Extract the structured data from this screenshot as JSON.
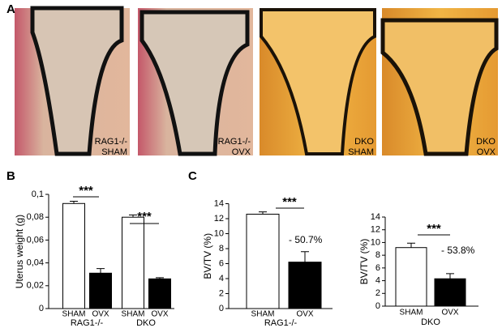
{
  "panel_labels": [
    "A",
    "B",
    "C"
  ],
  "images": [
    {
      "line1": "RAG1-/-",
      "line2": "SHAM"
    },
    {
      "line1": "RAG1-/-",
      "line2": "OVX"
    },
    {
      "line1": "DKO",
      "line2": "SHAM"
    },
    {
      "line1": "DKO",
      "line2": "OVX"
    }
  ],
  "chart_data": [
    {
      "type": "bar",
      "ylabel": "Uterus weight (g)",
      "categories": [
        "SHAM",
        "OVX",
        "SHAM",
        "OVX"
      ],
      "values": [
        0.092,
        0.031,
        0.08,
        0.026
      ],
      "errors": [
        0.002,
        0.004,
        0.002,
        0.001
      ],
      "bar_colors": [
        "#ffffff",
        "#000000",
        "#ffffff",
        "#000000"
      ],
      "group_labels": [
        "RAG1-/-",
        "DKO"
      ],
      "annotations": [
        "***",
        "***"
      ],
      "ylim": [
        0,
        0.1
      ],
      "yticks": [
        0,
        {
          "value": 0.02,
          "label": "0,02"
        },
        {
          "value": 0.04,
          "label": "0,04"
        },
        {
          "value": 0.06,
          "label": "0,06"
        },
        {
          "value": 0.08,
          "label": "0,08"
        },
        {
          "value": 0.1,
          "label": "0,1"
        }
      ]
    },
    {
      "type": "bar",
      "ylabel": "BV/TV (%)",
      "categories": [
        "SHAM",
        "OVX"
      ],
      "values": [
        12.6,
        6.2
      ],
      "errors": [
        0.3,
        1.4
      ],
      "bar_colors": [
        "#ffffff",
        "#000000"
      ],
      "group_labels": [
        "RAG1-/-"
      ],
      "annotations": [
        "***",
        "- 50.7%"
      ],
      "ylim": [
        0,
        14
      ],
      "yticks": [
        0,
        2,
        4,
        6,
        8,
        10,
        12,
        14
      ]
    },
    {
      "type": "bar",
      "ylabel": "BV/TV (%)",
      "categories": [
        "SHAM",
        "OVX"
      ],
      "values": [
        9.2,
        4.3
      ],
      "errors": [
        0.7,
        0.8
      ],
      "bar_colors": [
        "#ffffff",
        "#000000"
      ],
      "group_labels": [
        "DKO"
      ],
      "annotations": [
        "***",
        "- 53.8%"
      ],
      "ylim": [
        0,
        14
      ],
      "yticks": [
        0,
        2,
        4,
        6,
        8,
        10,
        12,
        14
      ]
    }
  ]
}
